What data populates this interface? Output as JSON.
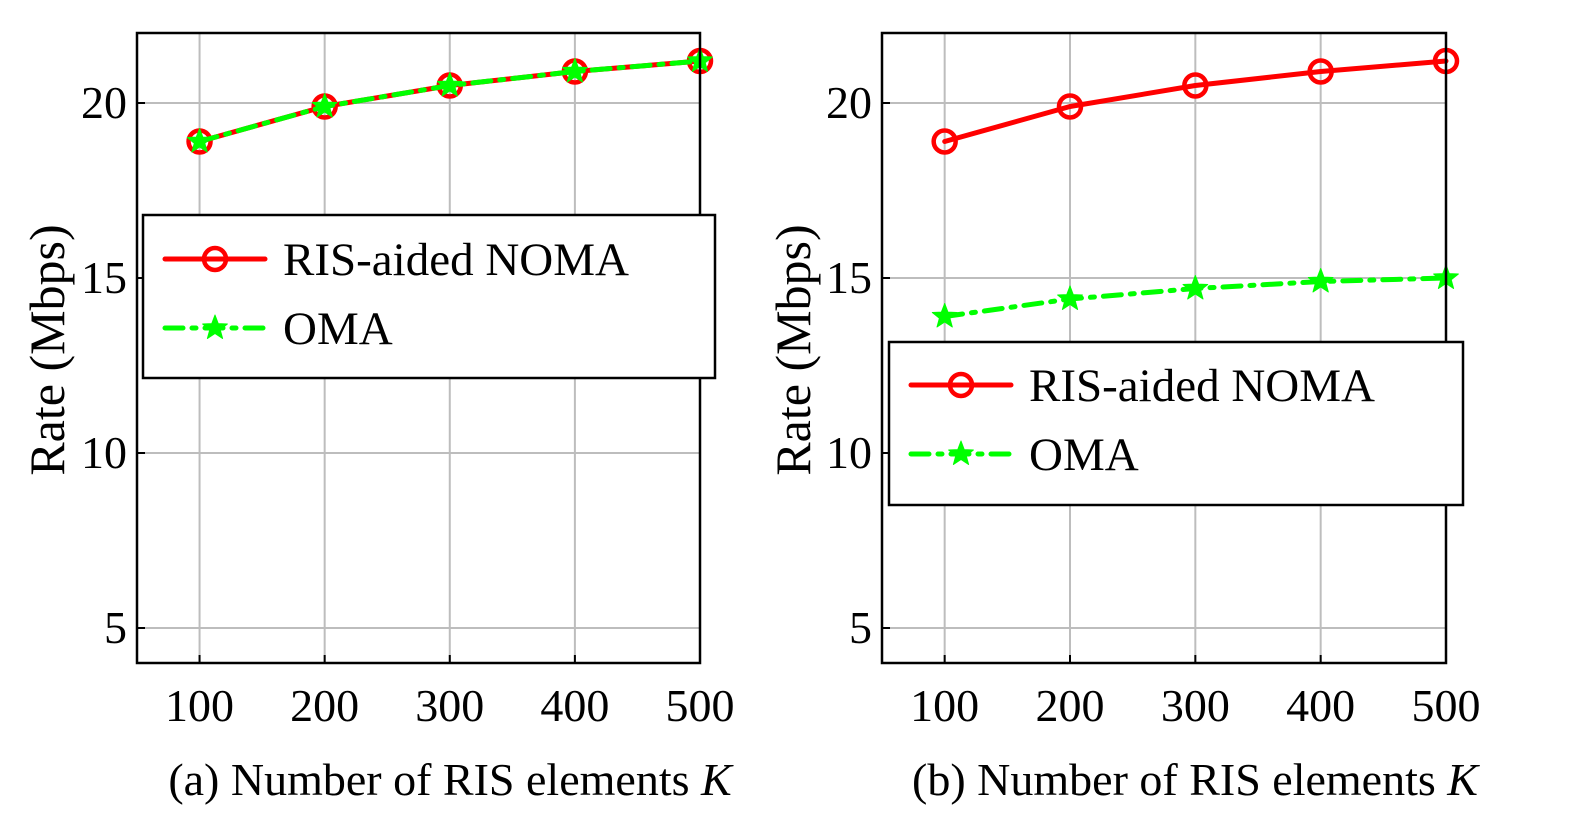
{
  "chart_data": [
    {
      "type": "line",
      "panel_id": "a",
      "caption": "(a) Number of RIS elements",
      "caption_var": "K",
      "xlabel": "",
      "ylabel": "Rate (Mbps)",
      "x": [
        100,
        200,
        300,
        400,
        500
      ],
      "x_ticks": [
        100,
        200,
        300,
        400,
        500
      ],
      "y_ticks": [
        5,
        10,
        15,
        20
      ],
      "xlim": [
        50,
        500
      ],
      "ylim": [
        4,
        22
      ],
      "grid": true,
      "legend_position": "center",
      "series": [
        {
          "name": "RIS-aided NOMA",
          "color": "#ff0000",
          "marker": "circle",
          "style": "solid",
          "values": [
            18.9,
            19.9,
            20.5,
            20.9,
            21.2
          ]
        },
        {
          "name": "OMA",
          "color": "#00ff00",
          "marker": "star",
          "style": "dash-dot",
          "values": [
            18.9,
            19.9,
            20.5,
            20.9,
            21.2
          ]
        }
      ]
    },
    {
      "type": "line",
      "panel_id": "b",
      "caption": "(b) Number of RIS elements",
      "caption_var": "K",
      "xlabel": "",
      "ylabel": "Rate (Mbps)",
      "x": [
        100,
        200,
        300,
        400,
        500
      ],
      "x_ticks": [
        100,
        200,
        300,
        400,
        500
      ],
      "y_ticks": [
        5,
        10,
        15,
        20
      ],
      "xlim": [
        50,
        500
      ],
      "ylim": [
        4,
        22
      ],
      "grid": true,
      "legend_position": "center-left",
      "series": [
        {
          "name": "RIS-aided NOMA",
          "color": "#ff0000",
          "marker": "circle",
          "style": "solid",
          "values": [
            18.9,
            19.9,
            20.5,
            20.9,
            21.2
          ]
        },
        {
          "name": "OMA",
          "color": "#00ff00",
          "marker": "star",
          "style": "dash-dot",
          "values": [
            13.9,
            14.4,
            14.7,
            14.9,
            15.0
          ]
        }
      ]
    }
  ]
}
